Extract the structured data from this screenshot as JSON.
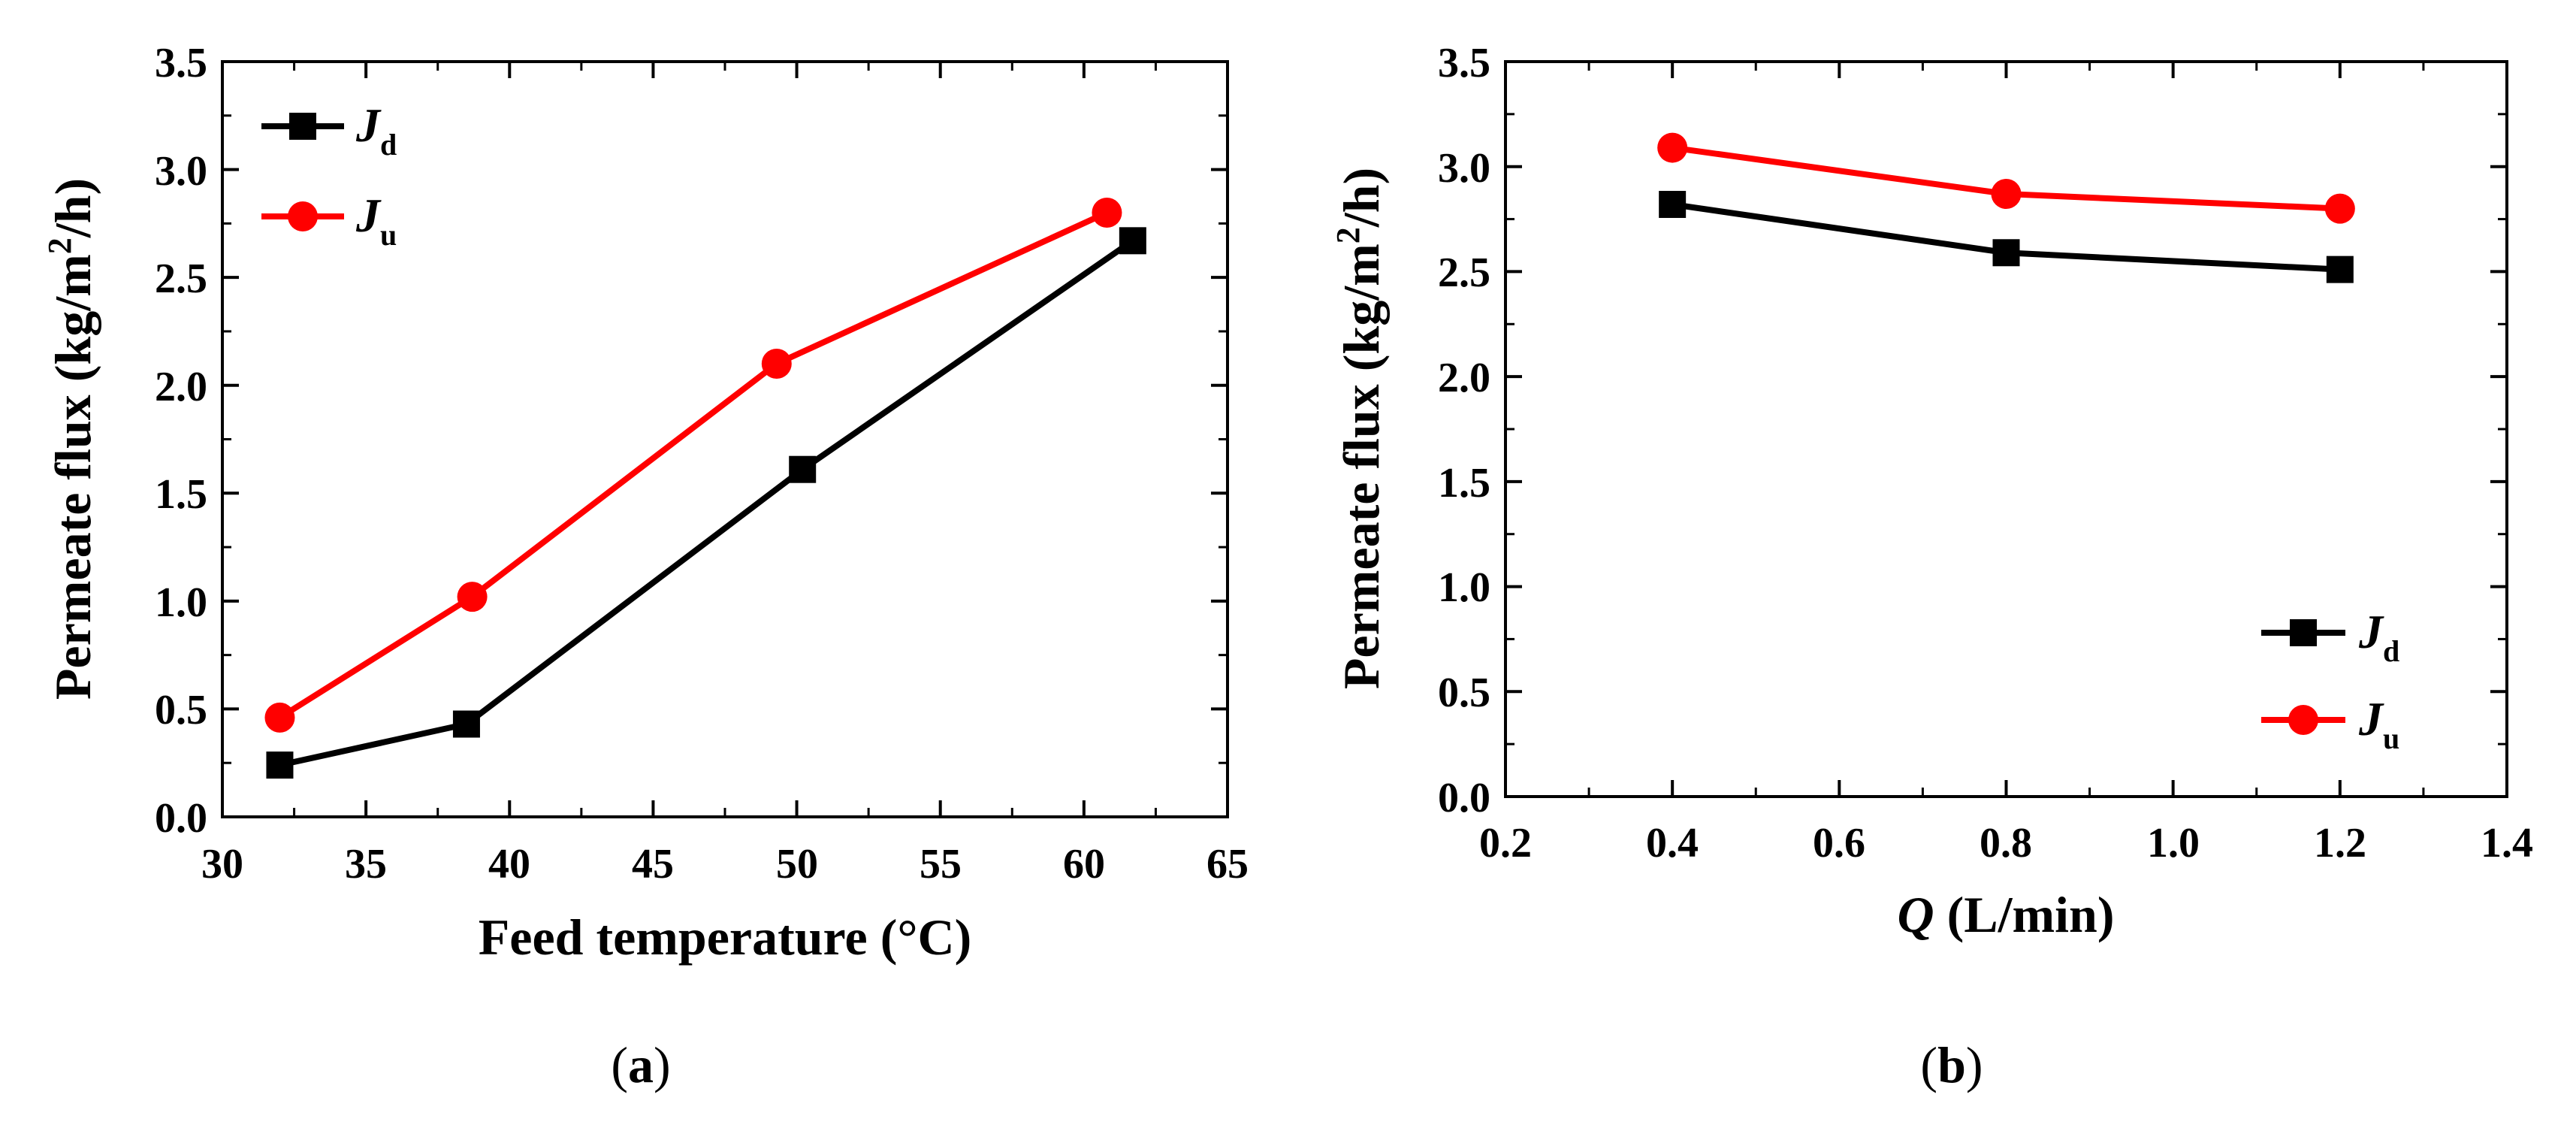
{
  "chart_data": [
    {
      "type": "line",
      "panel_label": "a",
      "xlabel": "Feed temperature (°C)",
      "ylabel": "Permeate flux (kg/m²/h)",
      "ylabel_parts": {
        "main": "Permeate flux (kg/m",
        "sup": "2",
        "tail": "/h)"
      },
      "xlim": [
        30,
        65
      ],
      "ylim": [
        0,
        3.5
      ],
      "xticks": [
        "30",
        "35",
        "40",
        "45",
        "50",
        "55",
        "60",
        "65"
      ],
      "yticks": [
        "0.0",
        "0.5",
        "1.0",
        "1.5",
        "2.0",
        "2.5",
        "3.0",
        "3.5"
      ],
      "legend_position": "top-left",
      "series": [
        {
          "name": "J",
          "sub": "d",
          "color": "#000000",
          "marker": "square",
          "x": [
            32,
            38.5,
            50.2,
            61.7
          ],
          "y": [
            0.24,
            0.43,
            1.61,
            2.67
          ]
        },
        {
          "name": "J",
          "sub": "u",
          "color": "#ff0000",
          "marker": "circle",
          "x": [
            32,
            38.7,
            49.3,
            60.8
          ],
          "y": [
            0.46,
            1.02,
            2.1,
            2.8
          ]
        }
      ]
    },
    {
      "type": "line",
      "panel_label": "b",
      "xlabel": "(L/min)",
      "xlabel_symbol": "Q",
      "ylabel": "Permeate flux (kg/m²/h)",
      "ylabel_parts": {
        "main": "Permeate flux (kg/m",
        "sup": "2",
        "tail": "/h)"
      },
      "xlim": [
        0.2,
        1.4
      ],
      "ylim": [
        0,
        3.5
      ],
      "xticks": [
        "0.2",
        "0.4",
        "0.6",
        "0.8",
        "1.0",
        "1.2",
        "1.4"
      ],
      "yticks": [
        "0.0",
        "0.5",
        "1.0",
        "1.5",
        "2.0",
        "2.5",
        "3.0",
        "3.5"
      ],
      "legend_position": "bottom-right",
      "series": [
        {
          "name": "J",
          "sub": "d",
          "color": "#000000",
          "marker": "square",
          "x": [
            0.4,
            0.8,
            1.2
          ],
          "y": [
            2.82,
            2.59,
            2.51
          ]
        },
        {
          "name": "J",
          "sub": "u",
          "color": "#ff0000",
          "marker": "circle",
          "x": [
            0.4,
            0.8,
            1.2
          ],
          "y": [
            3.09,
            2.87,
            2.8
          ]
        }
      ]
    }
  ]
}
